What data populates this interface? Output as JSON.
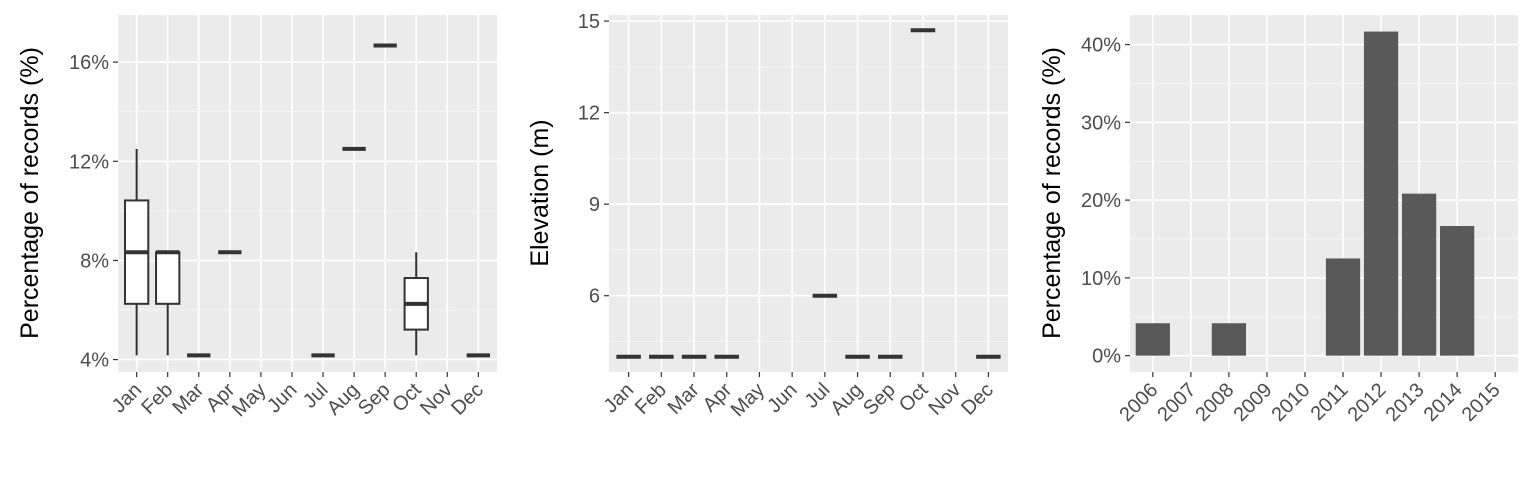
{
  "chart_data": [
    {
      "type": "boxplot",
      "ylabel": "Percentage of records (%)",
      "xlabel": "",
      "categories": [
        "Jan",
        "Feb",
        "Mar",
        "Apr",
        "May",
        "Jun",
        "Jul",
        "Aug",
        "Sep",
        "Oct",
        "Nov",
        "Dec"
      ],
      "yticks": [
        4,
        8,
        12,
        16
      ],
      "ytick_labels": [
        "4%",
        "8%",
        "12%",
        "16%"
      ],
      "ylim": [
        3.5,
        17.9
      ],
      "boxes": [
        {
          "category": "Jan",
          "min": 4.17,
          "q1": 6.25,
          "median": 8.33,
          "q3": 10.42,
          "max": 12.5
        },
        {
          "category": "Feb",
          "min": 4.17,
          "q1": 6.25,
          "median": 8.33,
          "q3": 8.33,
          "max": 8.33
        },
        {
          "category": "Mar",
          "min": 4.17,
          "q1": 4.17,
          "median": 4.17,
          "q3": 4.17,
          "max": 4.17
        },
        {
          "category": "Apr",
          "min": 8.33,
          "q1": 8.33,
          "median": 8.33,
          "q3": 8.33,
          "max": 8.33
        },
        {
          "category": "Jul",
          "min": 4.17,
          "q1": 4.17,
          "median": 4.17,
          "q3": 4.17,
          "max": 4.17
        },
        {
          "category": "Aug",
          "min": 12.5,
          "q1": 12.5,
          "median": 12.5,
          "q3": 12.5,
          "max": 12.5
        },
        {
          "category": "Sep",
          "min": 16.67,
          "q1": 16.67,
          "median": 16.67,
          "q3": 16.67,
          "max": 16.67
        },
        {
          "category": "Oct",
          "min": 4.17,
          "q1": 5.21,
          "median": 6.25,
          "q3": 7.29,
          "max": 8.33
        },
        {
          "category": "Dec",
          "min": 4.17,
          "q1": 4.17,
          "median": 4.17,
          "q3": 4.17,
          "max": 4.17
        }
      ],
      "grid": true
    },
    {
      "type": "boxplot",
      "ylabel": "Elevation (m)",
      "xlabel": "",
      "categories": [
        "Jan",
        "Feb",
        "Mar",
        "Apr",
        "May",
        "Jun",
        "Jul",
        "Aug",
        "Sep",
        "Oct",
        "Nov",
        "Dec"
      ],
      "yticks": [
        6,
        9,
        12,
        15
      ],
      "ytick_labels": [
        "6",
        "9",
        "12",
        "15"
      ],
      "ylim": [
        3.5,
        15.2
      ],
      "boxes": [
        {
          "category": "Jan",
          "min": 4,
          "q1": 4,
          "median": 4,
          "q3": 4,
          "max": 4
        },
        {
          "category": "Feb",
          "min": 4,
          "q1": 4,
          "median": 4,
          "q3": 4,
          "max": 4
        },
        {
          "category": "Mar",
          "min": 4,
          "q1": 4,
          "median": 4,
          "q3": 4,
          "max": 4
        },
        {
          "category": "Apr",
          "min": 4,
          "q1": 4,
          "median": 4,
          "q3": 4,
          "max": 4
        },
        {
          "category": "Jul",
          "min": 6,
          "q1": 6,
          "median": 6,
          "q3": 6,
          "max": 6
        },
        {
          "category": "Aug",
          "min": 4,
          "q1": 4,
          "median": 4,
          "q3": 4,
          "max": 4
        },
        {
          "category": "Sep",
          "min": 4,
          "q1": 4,
          "median": 4,
          "q3": 4,
          "max": 4
        },
        {
          "category": "Oct",
          "min": 14.7,
          "q1": 14.7,
          "median": 14.7,
          "q3": 14.7,
          "max": 14.7
        },
        {
          "category": "Dec",
          "min": 4,
          "q1": 4,
          "median": 4,
          "q3": 4,
          "max": 4
        }
      ],
      "grid": true
    },
    {
      "type": "bar",
      "ylabel": "Percentage of records (%)",
      "xlabel": "",
      "categories": [
        "2006",
        "2007",
        "2008",
        "2009",
        "2010",
        "2011",
        "2012",
        "2013",
        "2014",
        "2015"
      ],
      "values": [
        4.17,
        0,
        4.17,
        0,
        0,
        12.5,
        41.67,
        20.83,
        16.67,
        0
      ],
      "yticks": [
        0,
        10,
        20,
        30,
        40
      ],
      "ytick_labels": [
        "0%",
        "10%",
        "20%",
        "30%",
        "40%"
      ],
      "ylim": [
        -2.1,
        43.8
      ],
      "grid": true
    }
  ]
}
